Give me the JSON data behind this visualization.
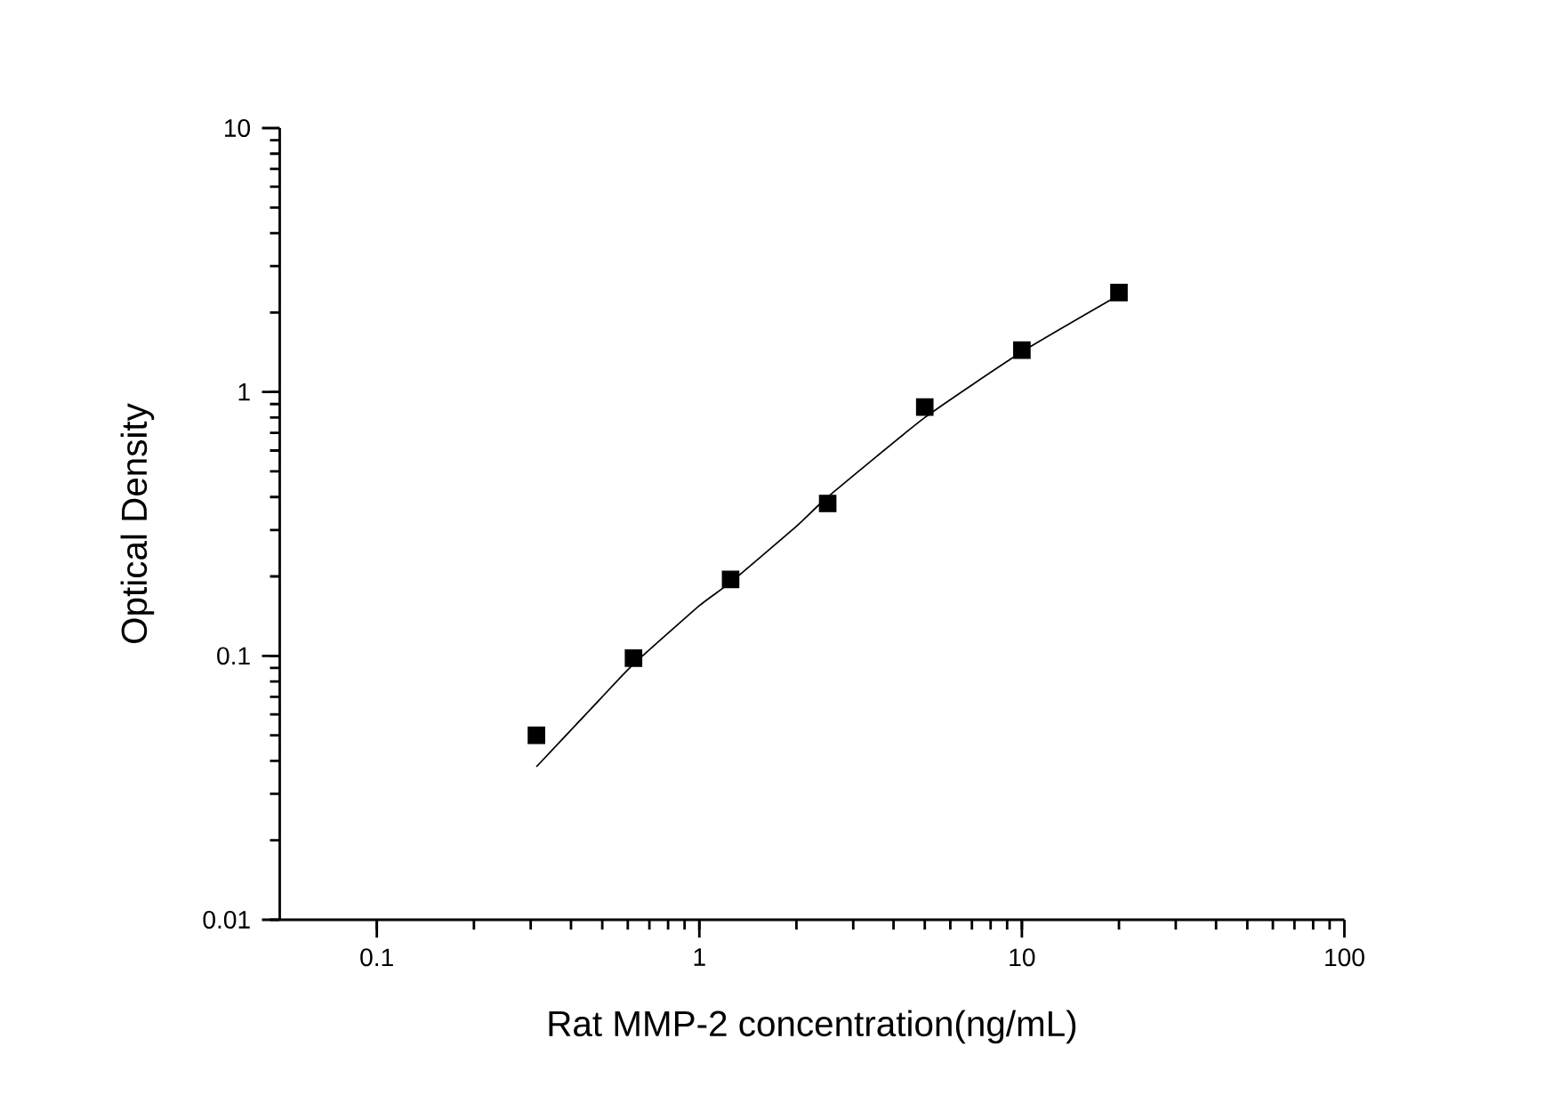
{
  "chart_data": {
    "type": "scatter",
    "xlabel": "Rat MMP-2 concentration(ng/mL)",
    "ylabel": "Optical Density",
    "log": "xy",
    "grid": false,
    "xlim": [
      0.05,
      100
    ],
    "ylim": [
      0.01,
      10
    ],
    "xticks": [
      0.1,
      1,
      10,
      100
    ],
    "yticks": [
      0.01,
      0.1,
      1,
      10
    ],
    "series": [
      {
        "marker": "square",
        "color": "#000000",
        "x": [
          0.3125,
          0.625,
          1.25,
          2.5,
          5,
          10,
          20
        ],
        "values": [
          0.05,
          0.098,
          0.195,
          0.378,
          0.877,
          1.44,
          2.38
        ]
      },
      {
        "type": "line",
        "marker": "none",
        "color": "#000000",
        "x": [
          0.3125,
          0.5,
          0.625,
          1,
          1.25,
          2,
          2.5,
          5,
          10,
          20
        ],
        "values": [
          0.038,
          0.07,
          0.093,
          0.155,
          0.19,
          0.31,
          0.4,
          0.8,
          1.42,
          2.33
        ]
      }
    ]
  }
}
